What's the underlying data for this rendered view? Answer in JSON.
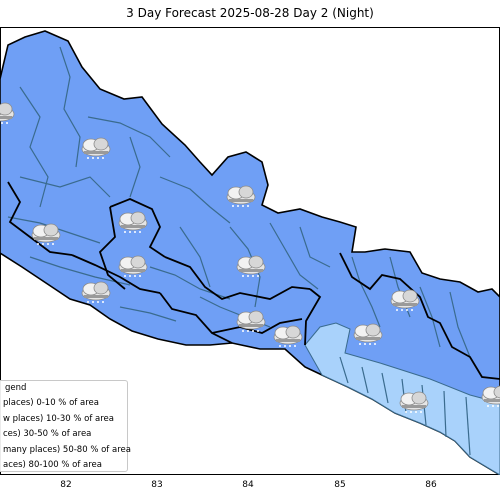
{
  "title": "3 Day Forecast 2025-08-28 Day 2 (Night)",
  "x_ticks": [
    "82",
    "83",
    "84",
    "85",
    "86"
  ],
  "legend": {
    "title": "gend",
    "rows": [
      "places)  0-10 % of area",
      "w places) 10-30 % of area",
      "ces) 30-50  % of area",
      "many places) 50-80 % of area",
      "aces) 80-100 % of area"
    ]
  },
  "colors": {
    "region_main": "#6f9ff5",
    "region_light": "#a9d2fb",
    "district_border": "#3a6b8e",
    "province_border": "#000000"
  },
  "icons": "cloud-rain-icon"
}
